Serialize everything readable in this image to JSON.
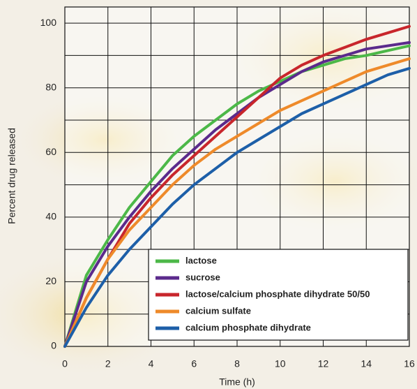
{
  "chart_data": {
    "type": "line",
    "x_label": "Time (h)",
    "y_label": "Percent drug released",
    "x": [
      0,
      1,
      2,
      3,
      4,
      5,
      6,
      7,
      8,
      9,
      10,
      11,
      12,
      13,
      14,
      15,
      16
    ],
    "series": [
      {
        "name": "lactose",
        "color": "#4cb848",
        "values": [
          0,
          22,
          33,
          43,
          51,
          59,
          65,
          70,
          75,
          79,
          82,
          85,
          87,
          89,
          90,
          91.5,
          93
        ]
      },
      {
        "name": "sucrose",
        "color": "#5b2a8c",
        "values": [
          0,
          20,
          31,
          40,
          48,
          55,
          61,
          67,
          72,
          77,
          81,
          85,
          88,
          90,
          92,
          93,
          94
        ]
      },
      {
        "name": "lactose/calcium phosphate dihydrate 50/50",
        "color": "#c8262c",
        "values": [
          0,
          15,
          27,
          38,
          46,
          53,
          59,
          65,
          71,
          77,
          83,
          87,
          90,
          92.5,
          95,
          97,
          99
        ]
      },
      {
        "name": "calcium sulfate",
        "color": "#ee8a2a",
        "values": [
          0,
          15,
          27,
          36,
          43,
          50,
          56,
          61,
          65,
          69,
          73,
          76,
          79,
          82,
          85,
          87,
          89
        ]
      },
      {
        "name": "calcium phosphate dihydrate",
        "color": "#1d5fa8",
        "values": [
          0,
          12,
          22,
          30,
          37,
          44,
          50,
          55,
          60,
          64,
          68,
          72,
          75,
          78,
          81,
          84,
          86
        ]
      }
    ],
    "xlim": [
      0,
      16
    ],
    "xticks": [
      0,
      2,
      4,
      6,
      8,
      10,
      12,
      14,
      16
    ],
    "ylim": [
      0,
      105
    ],
    "yticks": [
      0,
      20,
      40,
      60,
      80,
      100
    ],
    "y_minor_grid": [
      10,
      30,
      50,
      70,
      90
    ],
    "grid": true,
    "legend": "lower right"
  }
}
